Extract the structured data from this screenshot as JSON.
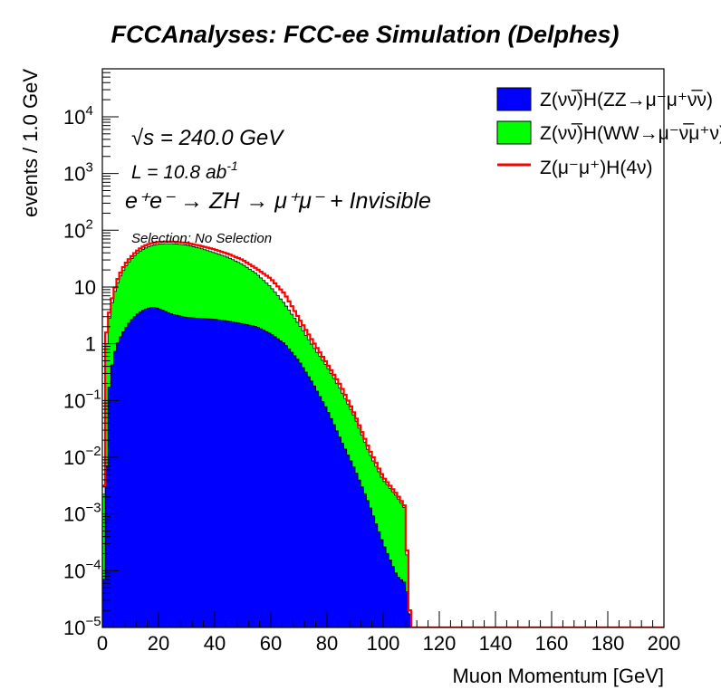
{
  "chart_data": {
    "type": "area",
    "title": "FCCAnalyses: FCC-ee Simulation (Delphes)",
    "xlabel": "Muon Momentum [GeV]",
    "ylabel": "events / 1.0 GeV",
    "xlim": [
      0,
      200
    ],
    "ylim": [
      1e-05,
      70000
    ],
    "yscale": "log",
    "x_ticks": [
      "0",
      "20",
      "40",
      "60",
      "80",
      "100",
      "120",
      "140",
      "160",
      "180",
      "200"
    ],
    "y_ticks": [
      {
        "base": "10",
        "exp": "−5",
        "value": 1e-05
      },
      {
        "base": "10",
        "exp": "−4",
        "value": 0.0001
      },
      {
        "base": "10",
        "exp": "−3",
        "value": 0.001
      },
      {
        "base": "10",
        "exp": "−2",
        "value": 0.01
      },
      {
        "base": "10",
        "exp": "−1",
        "value": 0.1
      },
      {
        "base": "1",
        "exp": "",
        "value": 1
      },
      {
        "base": "10",
        "exp": "",
        "value": 10
      },
      {
        "base": "10",
        "exp": "2",
        "value": 100
      },
      {
        "base": "10",
        "exp": "3",
        "value": 1000
      },
      {
        "base": "10",
        "exp": "4",
        "value": 10000
      }
    ],
    "annotations": {
      "sqrt_s": "√s = 240.0 GeV",
      "lumi_base": "L = 10.8 ab",
      "lumi_exp": "-1",
      "process": "e⁺e⁻ → ZH → μ⁺μ⁻ + Invisible",
      "selection": "Selection: No Selection"
    },
    "series": [
      {
        "name": "Z(νν̅)H(ZZ→μ⁻μ⁺ν̅ν)",
        "style": "stacked-fill",
        "color": "#0000ff",
        "x": [
          0,
          1,
          2,
          3,
          4,
          5,
          6,
          8,
          10,
          12,
          14,
          16,
          18,
          20,
          22,
          25,
          30,
          35,
          40,
          45,
          50,
          55,
          60,
          65,
          70,
          75,
          80,
          85,
          90,
          95,
          100,
          105,
          108,
          109,
          110
        ],
        "values": [
          1e-05,
          0.0005,
          0.1,
          0.3,
          0.6,
          0.9,
          1.2,
          1.8,
          2.5,
          3.2,
          3.8,
          4.2,
          4.4,
          4.2,
          3.8,
          3.3,
          2.9,
          2.8,
          2.7,
          2.5,
          2.25,
          2.0,
          1.5,
          1.0,
          0.5,
          0.2,
          0.07,
          0.02,
          0.006,
          0.0015,
          0.0003,
          8e-05,
          6e-05,
          3e-05,
          1e-05
        ]
      },
      {
        "name": "Z(νν̅)H(WW→μ⁻ν̅μ⁺ν)",
        "style": "stacked-fill",
        "color": "#00ff00",
        "x": [
          0,
          1,
          2,
          3,
          4,
          5,
          6,
          8,
          10,
          12,
          14,
          16,
          18,
          20,
          22,
          25,
          30,
          35,
          40,
          45,
          50,
          55,
          60,
          65,
          70,
          75,
          80,
          85,
          90,
          95,
          100,
          105,
          108,
          109,
          110
        ],
        "values": [
          1e-05,
          0.5,
          2.0,
          4.0,
          7.0,
          10.0,
          14.0,
          22.0,
          30.0,
          38.0,
          45.0,
          50.0,
          54.0,
          57.0,
          58.0,
          58.0,
          55.0,
          48.0,
          40.0,
          33.0,
          25.0,
          17.0,
          10.0,
          5.0,
          2.2,
          0.9,
          0.4,
          0.15,
          0.05,
          0.012,
          0.004,
          0.002,
          0.0012,
          3e-05,
          1e-05
        ]
      },
      {
        "name": "Z(μ⁻μ⁺)H(4ν)",
        "style": "line",
        "color": "#ff0000",
        "x": [
          0,
          1,
          2,
          3,
          4,
          5,
          6,
          8,
          10,
          12,
          14,
          16,
          18,
          20,
          22,
          25,
          30,
          35,
          40,
          45,
          50,
          55,
          60,
          65,
          70,
          75,
          80,
          85,
          90,
          95,
          100,
          105,
          108,
          109,
          110,
          200
        ],
        "values": [
          1e-05,
          1.0,
          2.5,
          5.0,
          8.0,
          12.0,
          16.0,
          25.0,
          33.0,
          42.0,
          50.0,
          56.0,
          60.0,
          62.0,
          63.0,
          63.0,
          60.0,
          53.0,
          46.0,
          38.0,
          30.0,
          21.0,
          14.0,
          7.5,
          2.8,
          1.1,
          0.45,
          0.18,
          0.055,
          0.014,
          0.0045,
          0.0022,
          0.0013,
          4e-05,
          1e-05,
          1e-05
        ]
      }
    ],
    "legend_position": "top-right"
  }
}
